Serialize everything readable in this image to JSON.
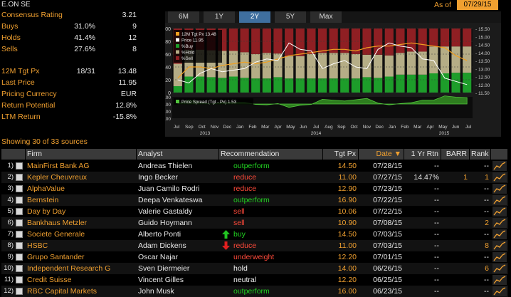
{
  "header": {
    "security": "E.ON SE",
    "as_of_label": "As of",
    "as_of_date": "07/29/15"
  },
  "stats": [
    {
      "label": "Consensus Rating",
      "v1": "",
      "v2": "3.21"
    },
    {
      "label": "Buys",
      "v1": "31.0%",
      "v2": "9"
    },
    {
      "label": "Holds",
      "v1": "41.4%",
      "v2": "12"
    },
    {
      "label": "Sells",
      "v1": "27.6%",
      "v2": "8"
    },
    {
      "label": "12M Tgt Px",
      "v1": "18/31",
      "v2": "13.48"
    },
    {
      "label": "Last Price",
      "v1": "",
      "v2": "11.95"
    },
    {
      "label": "Pricing Currency",
      "v1": "",
      "v2": "EUR"
    },
    {
      "label": "Return Potential",
      "v1": "",
      "v2": "12.8%"
    },
    {
      "label": "LTM Return",
      "v1": "",
      "v2": "-15.8%"
    }
  ],
  "tabs": [
    "6M",
    "1Y",
    "2Y",
    "5Y",
    "Max"
  ],
  "active_tab": "2Y",
  "chart_data": {
    "type": "bar",
    "legend": [
      "12M Tgt Px 13.48",
      "Price 11.95",
      "%Buy",
      "%Hold",
      "%Sell"
    ],
    "lower_legend": "Price Spread (Tgt - Px) 1.53",
    "y_left_ticks": [
      "100",
      "80",
      "60",
      "40",
      "20",
      "0"
    ],
    "y_right_ticks": [
      "15.50",
      "15.00",
      "14.50",
      "14.00",
      "13.50",
      "13.00",
      "12.50",
      "12.00",
      "11.50"
    ],
    "y_lower_ticks": [
      "2.00",
      "0.00",
      "-2.00",
      "-4.00"
    ],
    "x_months": [
      "Jul",
      "Sep",
      "Oct",
      "Nov",
      "Dec",
      "Jan",
      "Feb",
      "Mar",
      "Apr",
      "May",
      "Jun",
      "Jul",
      "Aug",
      "Sep",
      "Oct",
      "Nov",
      "Dec",
      "Jan",
      "Feb",
      "Mar",
      "Apr",
      "May",
      "Jun",
      "Jul"
    ],
    "x_years": [
      "2013",
      "2014",
      "2015"
    ],
    "buy": [
      10,
      25,
      25,
      24,
      23,
      25,
      23,
      22,
      22,
      24,
      22,
      22,
      22,
      22,
      22,
      22,
      22,
      24,
      23,
      25,
      28,
      28,
      28,
      30,
      30,
      31,
      31
    ],
    "hold": [
      35,
      42,
      42,
      42,
      42,
      40,
      40,
      38,
      40,
      37,
      35,
      35,
      38,
      40,
      40,
      40,
      38,
      35,
      36,
      33,
      34,
      36,
      36,
      42,
      42,
      41,
      41
    ],
    "sell": [
      55,
      33,
      33,
      34,
      35,
      35,
      37,
      40,
      38,
      39,
      43,
      43,
      40,
      38,
      38,
      38,
      40,
      41,
      41,
      42,
      38,
      36,
      36,
      28,
      28,
      28,
      28
    ],
    "colors": {
      "buy": "#1d9d2a",
      "hold": "#b5ad86",
      "sell": "#8f1f23",
      "target": "#f0a020",
      "price": "#ffffff"
    }
  },
  "sources_label": "Showing 30 of 33 sources",
  "table": {
    "headers": [
      "Firm",
      "Analyst",
      "Recommendation",
      "Tgt Px",
      "Date",
      "1 Yr Rtn",
      "BARR",
      "Rank"
    ],
    "rows": [
      {
        "n": "1)",
        "firm": "MainFirst Bank AG",
        "analyst": "Andreas Thielen",
        "rec": "outperform",
        "rec_color": "green",
        "arrow": "",
        "tgt": "14.50",
        "date": "07/28/15",
        "rtn": "--",
        "barr": "",
        "rank": "--"
      },
      {
        "n": "2)",
        "firm": "Kepler Cheuvreux",
        "analyst": "Ingo Becker",
        "rec": "reduce",
        "rec_color": "red",
        "arrow": "",
        "tgt": "11.00",
        "date": "07/27/15",
        "rtn": "14.47%",
        "barr": "1",
        "rank": "1"
      },
      {
        "n": "3)",
        "firm": "AlphaValue",
        "analyst": "Juan Camilo Rodri",
        "rec": "reduce",
        "rec_color": "red",
        "arrow": "",
        "tgt": "12.90",
        "date": "07/23/15",
        "rtn": "--",
        "barr": "",
        "rank": "--"
      },
      {
        "n": "4)",
        "firm": "Bernstein",
        "analyst": "Deepa Venkateswa",
        "rec": "outperform",
        "rec_color": "green",
        "arrow": "",
        "tgt": "16.90",
        "date": "07/22/15",
        "rtn": "--",
        "barr": "",
        "rank": "--"
      },
      {
        "n": "5)",
        "firm": "Day by Day",
        "analyst": "Valerie Gastaldy",
        "rec": "sell",
        "rec_color": "red",
        "arrow": "",
        "tgt": "10.06",
        "date": "07/22/15",
        "rtn": "--",
        "barr": "",
        "rank": "--"
      },
      {
        "n": "6)",
        "firm": "Bankhaus Metzler",
        "analyst": "Guido Hoymann",
        "rec": "sell",
        "rec_color": "red",
        "arrow": "",
        "tgt": "10.90",
        "date": "07/08/15",
        "rtn": "--",
        "barr": "",
        "rank": "2"
      },
      {
        "n": "7)",
        "firm": "Societe Generale",
        "analyst": "Alberto Ponti",
        "rec": "buy",
        "rec_color": "green",
        "arrow": "up",
        "tgt": "14.50",
        "date": "07/03/15",
        "rtn": "--",
        "barr": "",
        "rank": "--"
      },
      {
        "n": "8)",
        "firm": "HSBC",
        "analyst": "Adam Dickens",
        "rec": "reduce",
        "rec_color": "red",
        "arrow": "down",
        "tgt": "11.00",
        "date": "07/03/15",
        "rtn": "--",
        "barr": "",
        "rank": "8"
      },
      {
        "n": "9)",
        "firm": "Grupo Santander",
        "analyst": "Oscar Najar",
        "rec": "underweight",
        "rec_color": "red",
        "arrow": "",
        "tgt": "12.20",
        "date": "07/01/15",
        "rtn": "--",
        "barr": "",
        "rank": "--"
      },
      {
        "n": "10)",
        "firm": "Independent Research G",
        "analyst": "Sven Diermeier",
        "rec": "hold",
        "rec_color": "white",
        "arrow": "",
        "tgt": "14.00",
        "date": "06/26/15",
        "rtn": "--",
        "barr": "",
        "rank": "6"
      },
      {
        "n": "11)",
        "firm": "Credit Suisse",
        "analyst": "Vincent Gilles",
        "rec": "neutral",
        "rec_color": "white",
        "arrow": "",
        "tgt": "12.20",
        "date": "06/25/15",
        "rtn": "--",
        "barr": "",
        "rank": "--"
      },
      {
        "n": "12)",
        "firm": "RBC Capital Markets",
        "analyst": "John Musk",
        "rec": "outperform",
        "rec_color": "green",
        "arrow": "",
        "tgt": "16.00",
        "date": "06/23/15",
        "rtn": "--",
        "barr": "",
        "rank": "--"
      }
    ]
  }
}
